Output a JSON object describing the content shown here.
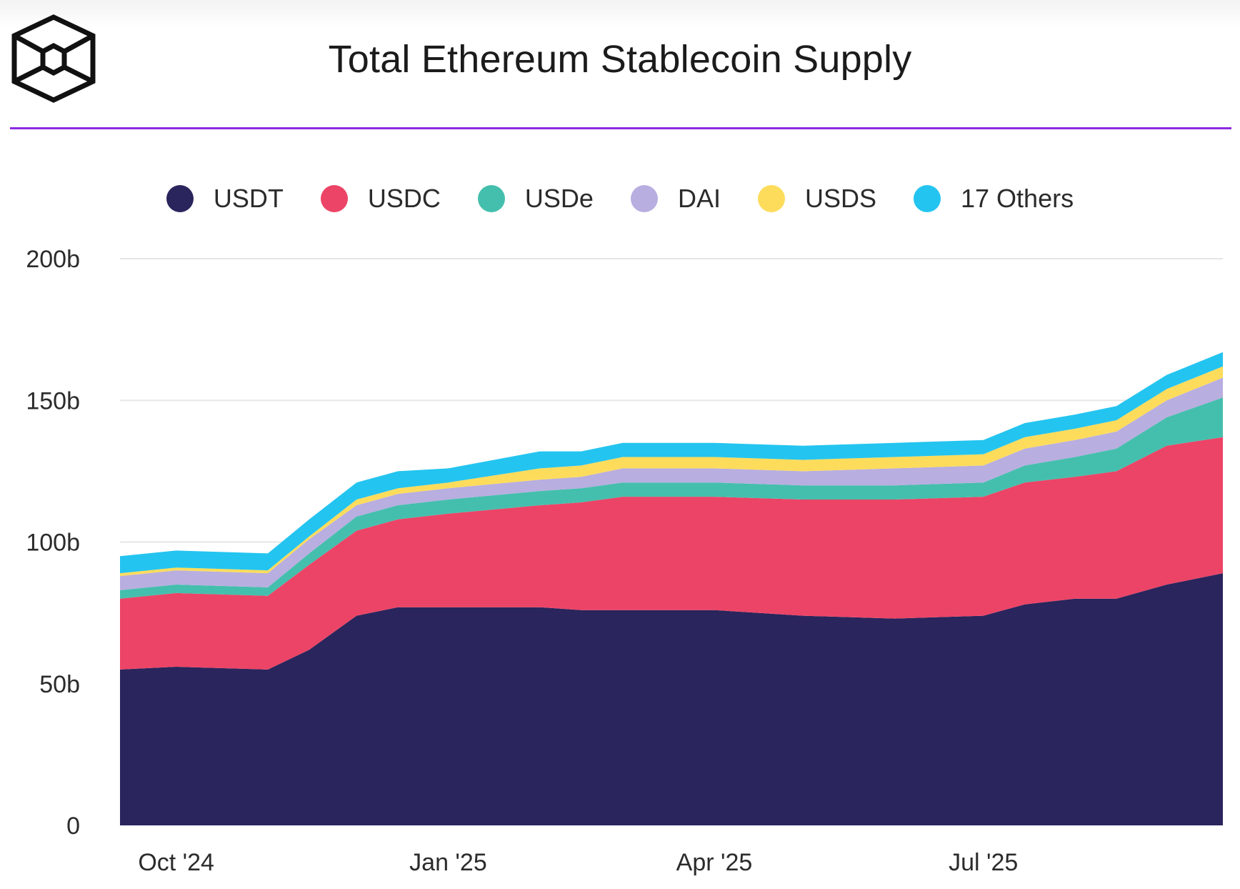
{
  "title": "Total Ethereum Stablecoin Supply",
  "chart_data": {
    "type": "area",
    "stacked": true,
    "title": "Total Ethereum Stablecoin Supply",
    "xlabel": "",
    "ylabel": "",
    "y_unit": "b",
    "ylim": [
      0,
      200
    ],
    "y_ticks": [
      0,
      50,
      100,
      150,
      200
    ],
    "y_tick_labels": [
      "0",
      "50b",
      "100b",
      "150b",
      "200b"
    ],
    "x_tick_labels": [
      "Oct '24",
      "Jan '25",
      "Apr '25",
      "Jul '25"
    ],
    "x_tick_dates": [
      "2024-10-01",
      "2025-01-01",
      "2025-04-01",
      "2025-07-01"
    ],
    "x_range": [
      "2024-09-12",
      "2025-09-20"
    ],
    "grid": "horizontal",
    "legend_position": "top",
    "x": [
      "2024-09-12",
      "2024-10-01",
      "2024-11-01",
      "2024-11-15",
      "2024-12-01",
      "2024-12-15",
      "2025-01-01",
      "2025-02-01",
      "2025-02-15",
      "2025-03-01",
      "2025-04-01",
      "2025-05-01",
      "2025-06-01",
      "2025-07-01",
      "2025-07-15",
      "2025-08-01",
      "2025-08-15",
      "2025-09-01",
      "2025-09-20"
    ],
    "series": [
      {
        "name": "USDT",
        "color": "#2a255c",
        "values": [
          55,
          56,
          55,
          62,
          74,
          77,
          77,
          77,
          76,
          76,
          76,
          74,
          73,
          74,
          78,
          80,
          80,
          85,
          89
        ]
      },
      {
        "name": "USDC",
        "color": "#ec4466",
        "values": [
          25,
          26,
          26,
          30,
          30,
          31,
          33,
          36,
          38,
          40,
          40,
          41,
          42,
          42,
          43,
          43,
          45,
          49,
          48
        ]
      },
      {
        "name": "USDe",
        "color": "#45bfad",
        "values": [
          3,
          3,
          3,
          4,
          5,
          5,
          5,
          5,
          5,
          5,
          5,
          5,
          5,
          5,
          6,
          7,
          8,
          10,
          14
        ]
      },
      {
        "name": "DAI",
        "color": "#b8aee0",
        "values": [
          5,
          5,
          5,
          5,
          4,
          4,
          4,
          4,
          4,
          5,
          5,
          5,
          6,
          6,
          6,
          6,
          6,
          6,
          7
        ]
      },
      {
        "name": "USDS",
        "color": "#fddc5c",
        "values": [
          1,
          1,
          1,
          1,
          2,
          2,
          2,
          4,
          4,
          4,
          4,
          4,
          4,
          4,
          4,
          4,
          4,
          4,
          4
        ]
      },
      {
        "name": "17 Others",
        "color": "#24c4f0",
        "values": [
          6,
          6,
          6,
          6,
          6,
          6,
          5,
          6,
          5,
          5,
          5,
          5,
          5,
          5,
          5,
          5,
          5,
          5,
          5
        ]
      }
    ]
  }
}
